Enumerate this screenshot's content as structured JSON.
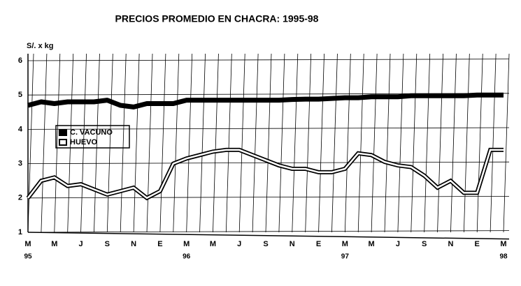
{
  "chart_data": {
    "type": "line",
    "title": "PRECIOS PROMEDIO EN CHACRA: 1995-98",
    "y_label": "S/. x kg",
    "categories": [
      "M",
      null,
      "M",
      null,
      "J",
      null,
      "S",
      null,
      "N",
      null,
      "E",
      null,
      "M",
      null,
      "M",
      null,
      "J",
      null,
      "S",
      null,
      "N",
      null,
      "E",
      null,
      "M",
      null,
      "M",
      null,
      "J",
      null,
      "S",
      null,
      "N",
      null,
      "E",
      null,
      "M"
    ],
    "years": [
      "95",
      null,
      null,
      null,
      null,
      null,
      null,
      null,
      null,
      null,
      null,
      null,
      "96",
      null,
      null,
      null,
      null,
      null,
      null,
      null,
      null,
      null,
      null,
      null,
      "97",
      null,
      null,
      null,
      null,
      null,
      null,
      null,
      null,
      null,
      null,
      null,
      "98"
    ],
    "series": [
      {
        "name": "C. VACUNO",
        "color": "#000000",
        "values": [
          4.7,
          4.8,
          4.75,
          4.8,
          4.8,
          4.8,
          4.85,
          4.7,
          4.65,
          4.75,
          4.75,
          4.75,
          4.85,
          4.85,
          4.85,
          4.85,
          4.85,
          4.85,
          4.85,
          4.85,
          4.87,
          4.88,
          4.88,
          4.9,
          4.92,
          4.92,
          4.95,
          4.95,
          4.95,
          4.98,
          4.98,
          4.98,
          4.98,
          4.98,
          5.0,
          5.0,
          5.0
        ]
      },
      {
        "name": "HUEVO",
        "color": "#000000",
        "values": [
          2.0,
          2.5,
          2.6,
          2.35,
          2.4,
          2.25,
          2.1,
          2.2,
          2.3,
          2.0,
          2.2,
          3.0,
          3.15,
          3.25,
          3.35,
          3.4,
          3.4,
          3.25,
          3.1,
          2.95,
          2.85,
          2.85,
          2.75,
          2.75,
          2.85,
          3.3,
          3.25,
          3.05,
          2.95,
          2.9,
          2.65,
          2.3,
          2.5,
          2.15,
          2.15,
          3.4,
          3.4
        ]
      }
    ],
    "ylim": [
      1,
      6
    ],
    "yticks": [
      1,
      2,
      3,
      4,
      5,
      6
    ],
    "grid": true
  }
}
